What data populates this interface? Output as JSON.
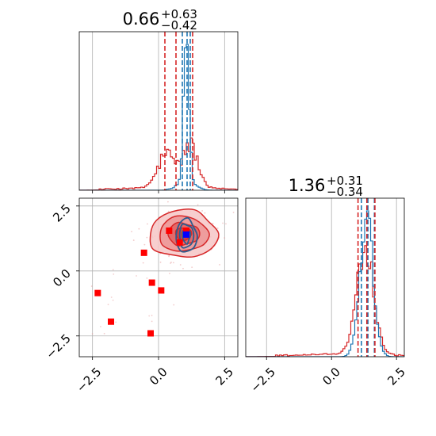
{
  "chart_data": {
    "type": "corner",
    "grid": true,
    "colors": {
      "primary": "#d62728",
      "secondary": "#1f77b4",
      "secondary_dark": "#2c5d8f",
      "point_primary": "#ff0000",
      "point_secondary": "#0000ff",
      "grid": "#b0b0b0"
    },
    "parameters": [
      {
        "title": {
          "value": "0.66",
          "plus": "+0.63",
          "minus": "−0.42"
        },
        "range": [
          -3.0,
          3.0
        ],
        "ticks": [
          {
            "value": -2.5,
            "label": "−2.5"
          },
          {
            "value": 0.0,
            "label": "0.0"
          },
          {
            "value": 2.5,
            "label": "2.5"
          }
        ]
      },
      {
        "title": {
          "value": "1.36",
          "plus": "+0.31",
          "minus": "−0.34"
        },
        "range": [
          -3.3,
          2.8
        ],
        "ticks": [
          {
            "value": -2.5,
            "label": "−2.5"
          },
          {
            "value": 0.0,
            "label": "0.0"
          },
          {
            "value": 2.5,
            "label": "2.5"
          }
        ]
      }
    ],
    "marginal_1": {
      "hist_red": {
        "center": 0.55,
        "spread": 0.5,
        "peaks": [
          0.3,
          1.2
        ]
      },
      "hist_blue": {
        "center": 1.05,
        "spread": 0.1
      },
      "quantiles_red": [
        0.24,
        0.66,
        1.29
      ],
      "quantiles_blue": [
        0.9,
        1.08,
        1.2
      ]
    },
    "marginal_2": {
      "hist_red": {
        "center": 1.3,
        "spread": 0.45
      },
      "hist_blue": {
        "center": 1.35,
        "spread": 0.25
      },
      "quantiles_red": [
        1.02,
        1.36,
        1.67
      ],
      "quantiles_blue": [
        1.15,
        1.4,
        1.65
      ]
    },
    "joint": {
      "red_contour_center": [
        1.0,
        1.45
      ],
      "blue_contour_center": [
        1.05,
        1.35
      ],
      "red_points": [
        [
          -2.3,
          -0.85
        ],
        [
          -1.8,
          -1.95
        ],
        [
          -0.55,
          0.7
        ],
        [
          -0.25,
          -0.45
        ],
        [
          0.1,
          -0.75
        ],
        [
          -0.3,
          -2.4
        ],
        [
          0.4,
          1.55
        ],
        [
          0.8,
          1.1
        ],
        [
          1.05,
          1.55
        ]
      ],
      "blue_points": [
        [
          1.05,
          1.4
        ]
      ]
    }
  }
}
